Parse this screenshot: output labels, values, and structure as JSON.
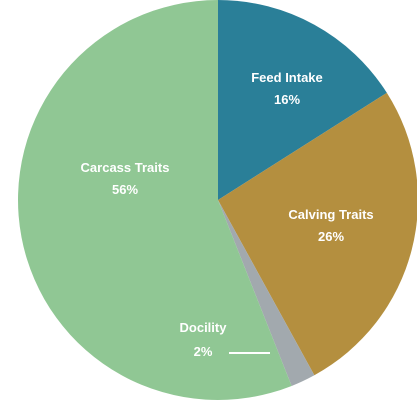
{
  "chart_data": {
    "type": "pie",
    "title": "",
    "slices": [
      {
        "label": "Feed Intake",
        "value": 16,
        "value_label": "16%",
        "color": "#2a7f98"
      },
      {
        "label": "Calving Traits",
        "value": 26,
        "value_label": "26%",
        "color": "#b48f3f"
      },
      {
        "label": "Docility",
        "value": 2,
        "value_label": "2%",
        "color": "#a2a9ae"
      },
      {
        "label": "Carcass Traits",
        "value": 56,
        "value_label": "56%",
        "color": "#90c794"
      }
    ]
  }
}
